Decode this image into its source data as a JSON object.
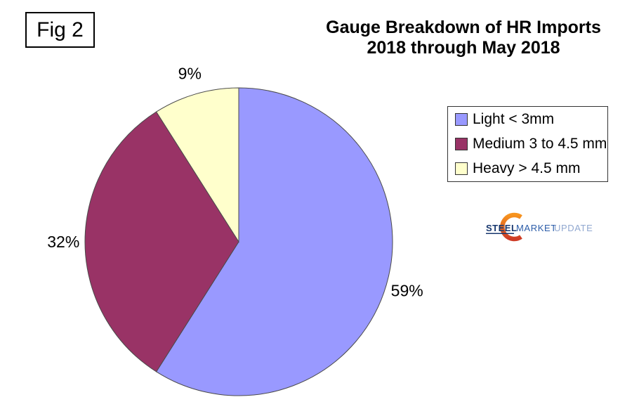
{
  "fig_label": "Fig 2",
  "title": {
    "line1": "Gauge Breakdown of HR Imports",
    "line2": "2018 through May 2018"
  },
  "chart_data": {
    "type": "pie",
    "title": "Gauge Breakdown of HR Imports 2018 through May 2018",
    "slices": [
      {
        "label": "Light < 3mm",
        "value": 59,
        "pct_label": "59%",
        "color": "#9999FF"
      },
      {
        "label": "Medium 3 to 4.5 mm",
        "value": 32,
        "pct_label": "32%",
        "color": "#993366"
      },
      {
        "label": "Heavy > 4.5 mm",
        "value": 9,
        "pct_label": "9%",
        "color": "#FFFFCC"
      }
    ],
    "start_angle_deg": 0,
    "direction": "clockwise",
    "legend_position": "right",
    "slice_border_color": "#4a4a4a",
    "label_color": "#000000"
  },
  "logo": {
    "word1": "STEEL",
    "word2": "MARKET",
    "word3": "UPDATE",
    "word1_color": "#17376E",
    "word2_color": "#2B5CA8",
    "word3_color": "#91A8D0",
    "crescent_top_color": "#F7941E",
    "crescent_bottom_color": "#CE3B26"
  }
}
